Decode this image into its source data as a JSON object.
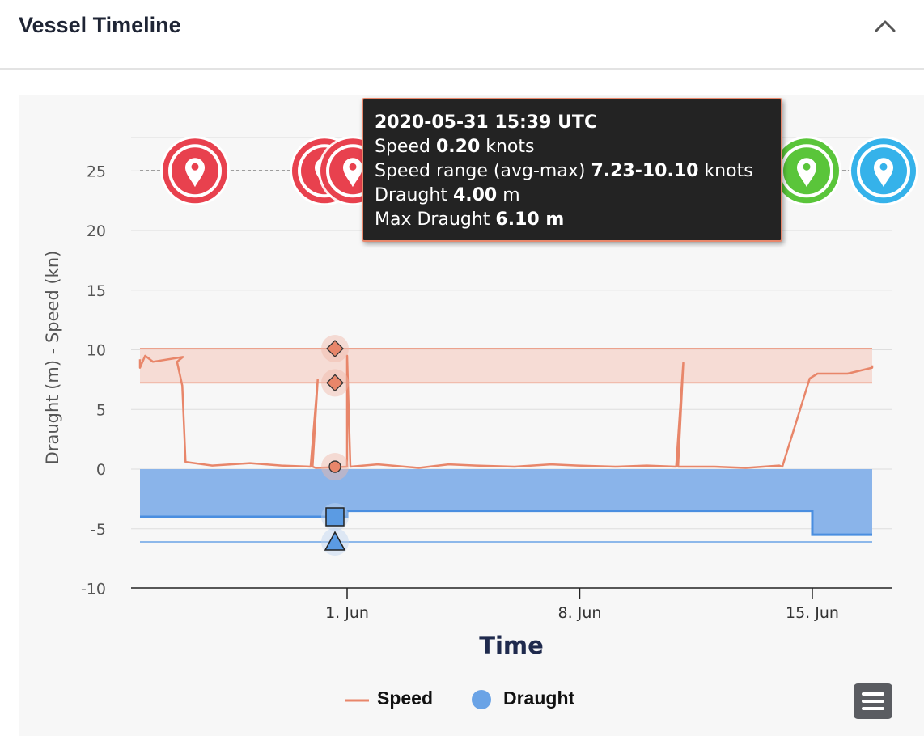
{
  "header": {
    "title": "Vessel Timeline"
  },
  "chart_data": {
    "type": "line",
    "ylabel": "Draught (m) - Speed (kn)",
    "xlabel": "Time",
    "ylim": [
      -10,
      27
    ],
    "y_ticks": [
      "25",
      "20",
      "15",
      "10",
      "5",
      "0",
      "-5",
      "-10"
    ],
    "x_ticks": [
      "1. Jun",
      "8. Jun",
      "15. Jun"
    ],
    "x_range_dates": [
      "2020-05-25",
      "2020-06-17"
    ],
    "speed_range_band": {
      "avg": 7.23,
      "max": 10.1
    },
    "max_draught": 6.1,
    "series": [
      {
        "name": "Speed",
        "color": "#e8866a",
        "points": [
          [
            "2020-05-25",
            9.2
          ],
          [
            "2020-05-25",
            8.5
          ],
          [
            "2020-05-26",
            9.5
          ],
          [
            "2020-05-26",
            9.0
          ],
          [
            "2020-05-27",
            9.4
          ],
          [
            "2020-05-27",
            9.0
          ],
          [
            "2020-05-27",
            7.0
          ],
          [
            "2020-05-27",
            0.6
          ],
          [
            "2020-05-28",
            0.3
          ],
          [
            "2020-05-29",
            0.5
          ],
          [
            "2020-05-30",
            0.3
          ],
          [
            "2020-05-31",
            0.2
          ],
          [
            "2020-05-31",
            7.5
          ],
          [
            "2020-05-31",
            0.2
          ],
          [
            "2020-05-31",
            0.1
          ],
          [
            "2020-06-01",
            0.2
          ],
          [
            "2020-06-01",
            9.5
          ],
          [
            "2020-06-01",
            0.2
          ],
          [
            "2020-06-02",
            0.4
          ],
          [
            "2020-06-03",
            0.1
          ],
          [
            "2020-06-04",
            0.4
          ],
          [
            "2020-06-05",
            0.3
          ],
          [
            "2020-06-06",
            0.2
          ],
          [
            "2020-06-07",
            0.4
          ],
          [
            "2020-06-08",
            0.3
          ],
          [
            "2020-06-09",
            0.2
          ],
          [
            "2020-06-10",
            0.3
          ],
          [
            "2020-06-11",
            0.2
          ],
          [
            "2020-06-11",
            8.9
          ],
          [
            "2020-06-11",
            0.2
          ],
          [
            "2020-06-12",
            0.2
          ],
          [
            "2020-06-13",
            0.1
          ],
          [
            "2020-06-14",
            0.3
          ],
          [
            "2020-06-14",
            0.2
          ],
          [
            "2020-06-15",
            7.6
          ],
          [
            "2020-06-15",
            8.0
          ],
          [
            "2020-06-16",
            8.0
          ],
          [
            "2020-06-17",
            8.5
          ],
          [
            "2020-06-17",
            8.7
          ]
        ]
      },
      {
        "name": "Draught",
        "color": "#6aa3e6",
        "points": [
          [
            "2020-05-25",
            -4.0
          ],
          [
            "2020-05-31",
            -4.0
          ],
          [
            "2020-06-01",
            -3.5
          ],
          [
            "2020-06-14",
            -3.5
          ],
          [
            "2020-06-15",
            -5.5
          ],
          [
            "2020-06-17",
            -5.5
          ]
        ]
      }
    ]
  },
  "events": [
    {
      "type": "port",
      "color": "#e8414e"
    },
    {
      "type": "port",
      "color": "#e8414e"
    },
    {
      "type": "port",
      "color": "#e8414e"
    },
    {
      "type": "port",
      "color": "#5a1f23"
    },
    {
      "type": "port",
      "color": "#5ac53a"
    },
    {
      "type": "port",
      "color": "#35b2ea"
    }
  ],
  "tooltip": {
    "timestamp": "2020-05-31 15:39 UTC",
    "speed_label": "Speed",
    "speed_value": "0.20",
    "speed_unit": "knots",
    "range_label": "Speed range (avg-max)",
    "range_value": "7.23-10.10",
    "range_unit": "knots",
    "draught_label": "Draught",
    "draught_value": "4.00",
    "draught_unit": "m",
    "max_draught_label": "Max Draught",
    "max_draught_value": "6.10 m"
  },
  "legend": [
    {
      "label": "Speed",
      "color": "#e8866a"
    },
    {
      "label": "Draught",
      "color": "#6aa3e6"
    }
  ],
  "icons": {
    "collapse": "chevron-up-icon",
    "menu": "hamburger-menu-icon"
  }
}
